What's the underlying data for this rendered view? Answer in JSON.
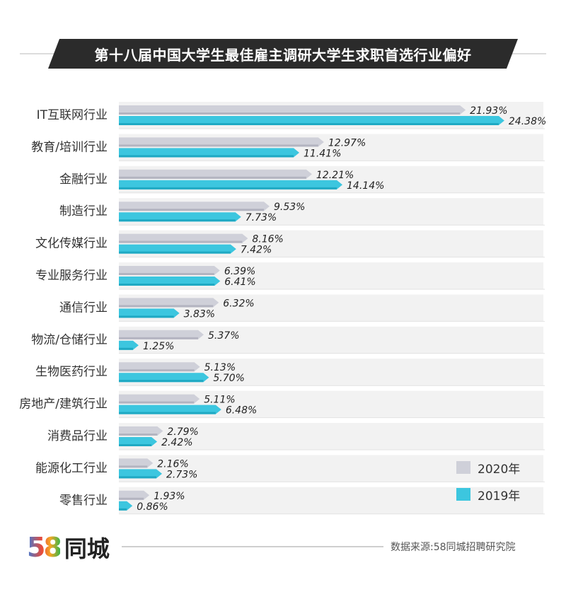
{
  "title": "第十八届中国大学生最佳雇主调研大学生求职首选行业偏好",
  "logo": {
    "mark": "58",
    "name": "同城"
  },
  "source": "数据来源:58同城招聘研究院",
  "colors": {
    "series_2020": "#cfd0d9",
    "series_2019": "#3cc6df",
    "banner": "#2b2b2b"
  },
  "chart_data": {
    "type": "bar",
    "orientation": "horizontal",
    "categories": [
      "IT互联网行业",
      "教育/培训行业",
      "金融行业",
      "制造行业",
      "文化传媒行业",
      "专业服务行业",
      "通信行业",
      "物流/仓储行业",
      "生物医药行业",
      "房地产/建筑行业",
      "消费品行业",
      "能源化工行业",
      "零售行业"
    ],
    "series": [
      {
        "name": "2020年",
        "values": [
          21.93,
          12.97,
          12.21,
          9.53,
          8.16,
          6.39,
          6.32,
          5.37,
          5.13,
          5.11,
          2.79,
          2.16,
          1.93
        ],
        "labels": [
          "21.93%",
          "12.97%",
          "12.21%",
          "9.53%",
          "8.16%",
          "6.39%",
          "6.32%",
          "5.37%",
          "5.13%",
          "5.11%",
          "2.79%",
          "2.16%",
          "1.93%"
        ]
      },
      {
        "name": "2019年",
        "values": [
          24.38,
          11.41,
          14.14,
          7.73,
          7.42,
          6.41,
          3.83,
          1.25,
          5.7,
          6.48,
          2.42,
          2.73,
          0.86
        ],
        "labels": [
          "24.38%",
          "11.41%",
          "14.14%",
          "7.73%",
          "7.42%",
          "6.41%",
          "3.83%",
          "1.25%",
          "5.70%",
          "6.48%",
          "2.42%",
          "2.73%",
          "0.86%"
        ]
      }
    ],
    "legend_position": "bottom-right",
    "grid": false
  }
}
